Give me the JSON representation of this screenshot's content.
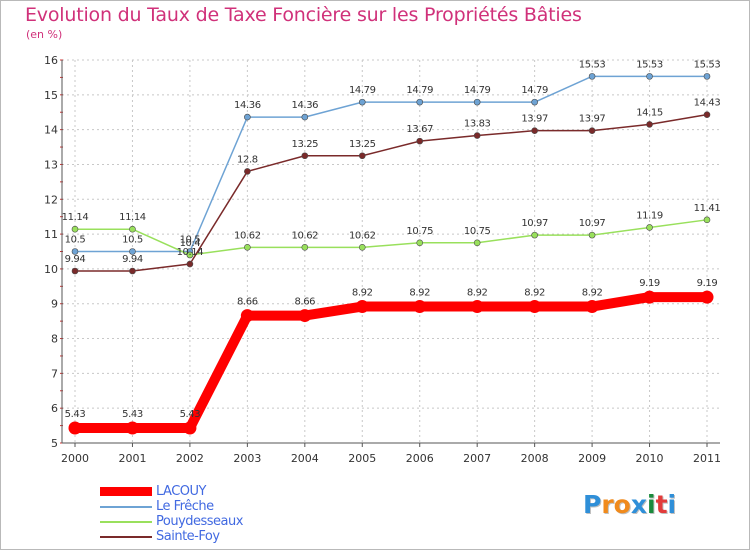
{
  "chart_data": {
    "type": "line",
    "title": "Evolution du Taux de Taxe Foncière sur les Propriétés Bâties",
    "ylabel": "(en %)",
    "xlabel": "",
    "x": [
      "2000",
      "2001",
      "2002",
      "2003",
      "2004",
      "2005",
      "2006",
      "2007",
      "2008",
      "2009",
      "2010",
      "2011"
    ],
    "yticks": [
      5,
      6,
      7,
      8,
      9,
      10,
      11,
      12,
      13,
      14,
      15,
      16
    ],
    "ylim": [
      5,
      16
    ],
    "grid": true,
    "legend_position": "bottom-left",
    "series": [
      {
        "name": "LACOUY",
        "color": "#ff0000",
        "values": [
          5.43,
          5.43,
          5.43,
          8.66,
          8.66,
          8.92,
          8.92,
          8.92,
          8.92,
          8.92,
          9.19,
          9.19
        ],
        "labels": [
          "5.43",
          "5.43",
          "5.43",
          "8.66",
          "8.66",
          "8.92",
          "8.92",
          "8.92",
          "8.92",
          "8.92",
          "9.19",
          "9.19"
        ]
      },
      {
        "name": "Le Frêche",
        "color": "#6ea3d4",
        "values": [
          10.5,
          10.5,
          10.5,
          14.36,
          14.36,
          14.79,
          14.79,
          14.79,
          14.79,
          15.53,
          15.53,
          15.53
        ],
        "labels": [
          "10.5",
          "10.5",
          "10.5",
          "14.36",
          "14.36",
          "14.79",
          "14.79",
          "14.79",
          "14.79",
          "15.53",
          "15.53",
          "15.53"
        ]
      },
      {
        "name": "Pouydesseaux",
        "color": "#99e05c",
        "values": [
          11.14,
          11.14,
          10.4,
          10.62,
          10.62,
          10.62,
          10.75,
          10.75,
          10.97,
          10.97,
          11.19,
          11.41
        ],
        "labels": [
          "11.14",
          "11.14",
          "10.4",
          "10.62",
          "10.62",
          "10.62",
          "10.75",
          "10.75",
          "10.97",
          "10.97",
          "11.19",
          "11.41"
        ]
      },
      {
        "name": "Sainte-Foy",
        "color": "#7a2a2a",
        "values": [
          9.94,
          9.94,
          10.14,
          12.8,
          13.25,
          13.25,
          13.67,
          13.83,
          13.97,
          13.97,
          14.15,
          14.43
        ],
        "labels": [
          "9.94",
          "9.94",
          "10.14",
          "12.8",
          "13.25",
          "13.25",
          "13.67",
          "13.83",
          "13.97",
          "13.97",
          "14.15",
          "14.43"
        ]
      }
    ]
  },
  "logo": {
    "letters": [
      "P",
      "r",
      "o",
      "x",
      "i",
      "t",
      "i"
    ],
    "colors": [
      "#2f8fd8",
      "#f08a1c",
      "#f08a1c",
      "#2f8fd8",
      "#1a8a3c",
      "#e23b3b",
      "#2f8fd8"
    ]
  }
}
